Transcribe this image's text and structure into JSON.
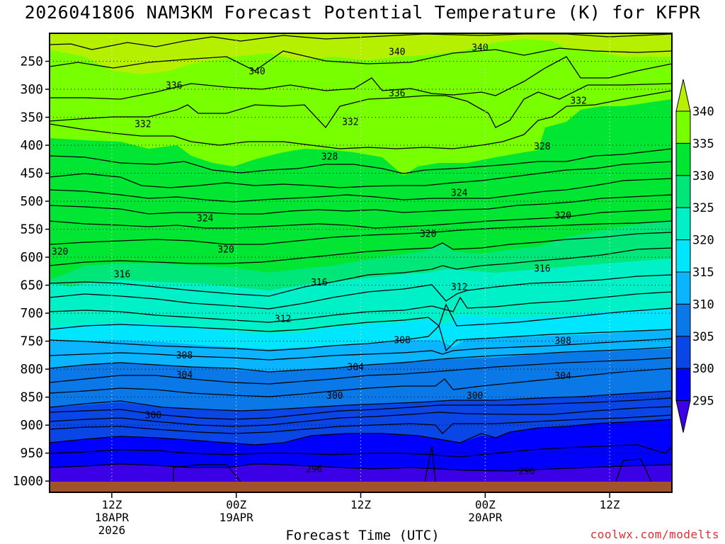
{
  "chart_data": {
    "type": "contour",
    "title": "2026041806 NAM3KM Forecast Potential Temperature (K) for KFPR",
    "xlabel": "Forecast Time (UTC)",
    "ylabel": "",
    "credit": "coolwx.com/modelts",
    "y_ticks": [
      250,
      300,
      350,
      400,
      450,
      500,
      550,
      600,
      650,
      700,
      750,
      800,
      850,
      900,
      950,
      1000
    ],
    "y_tick_labels": [
      "250",
      "300",
      "350",
      "400",
      "450",
      "500",
      "550",
      "600",
      "650",
      "700",
      "750",
      "800",
      "850",
      "900",
      "950",
      "1000"
    ],
    "y_range_hPa": [
      200,
      1020
    ],
    "x_range_hours": [
      0,
      60
    ],
    "x_ticks": [
      {
        "hour": 6,
        "label": "12Z",
        "sub1": "18APR",
        "sub2": "2026"
      },
      {
        "hour": 18,
        "label": "00Z",
        "sub1": "19APR",
        "sub2": ""
      },
      {
        "hour": 30,
        "label": "12Z",
        "sub1": "",
        "sub2": ""
      },
      {
        "hour": 42,
        "label": "00Z",
        "sub1": "20APR",
        "sub2": ""
      },
      {
        "hour": 54,
        "label": "12Z",
        "sub1": "",
        "sub2": ""
      }
    ],
    "colorbar": {
      "levels": [
        295,
        300,
        305,
        310,
        315,
        320,
        325,
        330,
        335,
        340
      ],
      "labels": [
        "295",
        "300",
        "305",
        "310",
        "315",
        "320",
        "325",
        "330",
        "335",
        "340"
      ],
      "colors": [
        "#3c00e6",
        "#0000ff",
        "#0a46e6",
        "#0a78e6",
        "#0ab4ff",
        "#00e6ff",
        "#00f0c8",
        "#00e678",
        "#00e632",
        "#78ff00",
        "#b4f000"
      ]
    },
    "contour_interval_K": 4,
    "contour_labels": [
      {
        "value": "340",
        "hour": 41.5,
        "p": 225
      },
      {
        "value": "340",
        "hour": 33.5,
        "p": 233
      },
      {
        "value": "340",
        "hour": 20,
        "p": 268
      },
      {
        "value": "336",
        "hour": 12,
        "p": 293
      },
      {
        "value": "336",
        "hour": 33.5,
        "p": 307
      },
      {
        "value": "332",
        "hour": 51,
        "p": 320
      },
      {
        "value": "332",
        "hour": 9,
        "p": 362
      },
      {
        "value": "332",
        "hour": 29,
        "p": 358
      },
      {
        "value": "328",
        "hour": 27,
        "p": 420
      },
      {
        "value": "328",
        "hour": 47.5,
        "p": 402
      },
      {
        "value": "324",
        "hour": 39.5,
        "p": 485
      },
      {
        "value": "324",
        "hour": 15,
        "p": 530
      },
      {
        "value": "320",
        "hour": 49.5,
        "p": 525
      },
      {
        "value": "320",
        "hour": 36.5,
        "p": 558
      },
      {
        "value": "320",
        "hour": 1,
        "p": 590
      },
      {
        "value": "320",
        "hour": 17,
        "p": 586
      },
      {
        "value": "316",
        "hour": 7,
        "p": 630
      },
      {
        "value": "316",
        "hour": 26,
        "p": 645
      },
      {
        "value": "316",
        "hour": 47.5,
        "p": 620
      },
      {
        "value": "312",
        "hour": 39.5,
        "p": 653
      },
      {
        "value": "312",
        "hour": 22.5,
        "p": 710
      },
      {
        "value": "308",
        "hour": 34,
        "p": 748
      },
      {
        "value": "308",
        "hour": 49.5,
        "p": 749
      },
      {
        "value": "308",
        "hour": 13,
        "p": 775
      },
      {
        "value": "304",
        "hour": 29.5,
        "p": 796
      },
      {
        "value": "304",
        "hour": 13,
        "p": 810
      },
      {
        "value": "304",
        "hour": 49.5,
        "p": 812
      },
      {
        "value": "300",
        "hour": 27.5,
        "p": 847
      },
      {
        "value": "300",
        "hour": 41,
        "p": 847
      },
      {
        "value": "300",
        "hour": 10,
        "p": 882
      },
      {
        "value": "296",
        "hour": 25.5,
        "p": 978
      },
      {
        "value": "296",
        "hour": 46,
        "p": 982
      }
    ]
  }
}
